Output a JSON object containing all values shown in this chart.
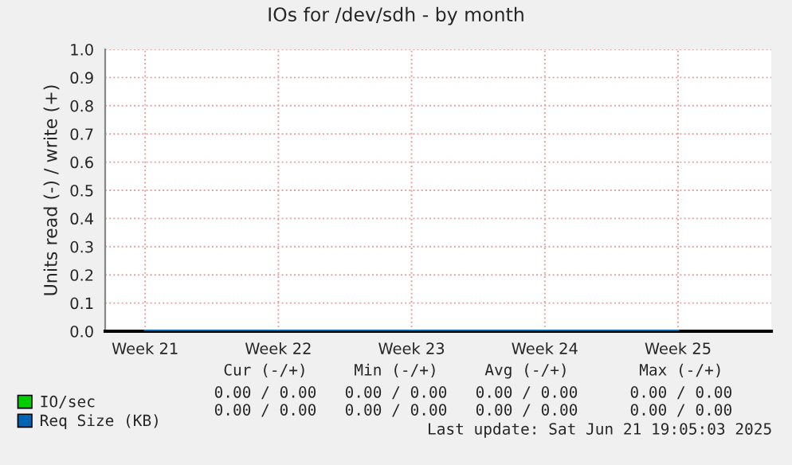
{
  "chart_data": {
    "type": "line",
    "title": "IOs for /dev/sdh - by month",
    "ylabel": "Units read (-) / write (+)",
    "categories": [
      "Week 21",
      "Week 22",
      "Week 23",
      "Week 24",
      "Week 25"
    ],
    "ylim": [
      0.0,
      1.0
    ],
    "yticks": [
      {
        "value": 0,
        "label": "0.0"
      },
      {
        "value": 0.1,
        "label": "0.1"
      },
      {
        "value": 0.2,
        "label": "0.2"
      },
      {
        "value": 0.3,
        "label": "0.3"
      },
      {
        "value": 0.4,
        "label": "0.4"
      },
      {
        "value": 0.5,
        "label": "0.5"
      },
      {
        "value": 0.6,
        "label": "0.6"
      },
      {
        "value": 0.7,
        "label": "0.7"
      },
      {
        "value": 0.8,
        "label": "0.8"
      },
      {
        "value": 0.9,
        "label": "0.9"
      },
      {
        "value": 1.0,
        "label": "1.0"
      }
    ],
    "grid": true,
    "legend": "bottom",
    "series": [
      {
        "name": "IO/sec",
        "color": "#00cc00",
        "values": [
          null,
          null,
          null,
          null,
          null
        ]
      },
      {
        "name": "Req Size (KB)",
        "color": "#0066b3",
        "values": [
          0,
          0,
          0,
          0,
          0
        ]
      }
    ],
    "annotations": [
      "Cur (-/+)",
      "Min (-/+)",
      "Avg (-/+)",
      "Max (-/+)",
      "0.00 / 0.00",
      "0.00 / 0.00",
      "0.00 / 0.00",
      "0.00 / 0.00",
      "0.00 / 0.00",
      "0.00 / 0.00",
      "0.00 / 0.00",
      "0.00 / 0.00",
      "Last update: Sat Jun 21 19:05:03 2025"
    ]
  }
}
